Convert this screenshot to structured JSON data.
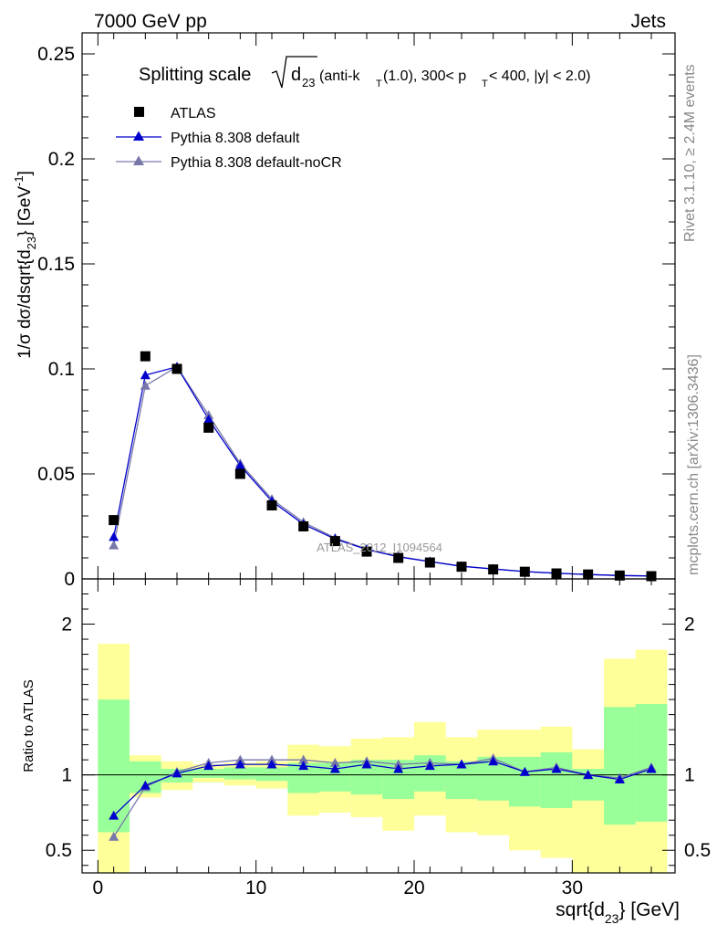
{
  "header": {
    "left": "7000 GeV pp",
    "right": "Jets"
  },
  "side_labels": {
    "rivet": "Rivet 3.1.10, ≥ 2.4M events",
    "mcplots": "mcplots.cern.ch [arXiv:1306.3436]"
  },
  "watermark": "ATLAS_2012_I1094564",
  "chart_data": [
    {
      "type": "scatter",
      "title": {
        "main": "Splitting scale",
        "d_sub": "23",
        "mid": " (anti-k",
        "mid_sub": "T",
        "mid2": "(1.0), 300< p",
        "pt_sub": "T",
        "tail": " < 400, |y| < 2.0)"
      },
      "ylabel": {
        "a": "1/σ dσ/dsqrt{d",
        "sub": "23",
        "b": "} [GeV",
        "sup": "-1",
        "c": "]"
      },
      "xlim": [
        -1,
        36.5
      ],
      "ylim": [
        0,
        0.26
      ],
      "yticks": [
        0,
        0.05,
        0.1,
        0.15,
        0.2,
        0.25
      ],
      "ytick_labels": [
        "0",
        "0.05",
        "0.1",
        "0.15",
        "0.2",
        "0.25"
      ],
      "x": [
        1,
        3,
        5,
        7,
        9,
        11,
        13,
        15,
        17,
        19,
        21,
        23,
        25,
        27,
        29,
        31,
        33,
        35
      ],
      "series": [
        {
          "name": "ATLAS",
          "color": "#000000",
          "marker": "square",
          "values": [
            0.028,
            0.106,
            0.1,
            0.072,
            0.05,
            0.035,
            0.025,
            0.018,
            0.013,
            0.01,
            0.0078,
            0.0058,
            0.0045,
            0.0034,
            0.0026,
            0.0021,
            0.0016,
            0.0013
          ]
        },
        {
          "name": "Pythia 8.308 default",
          "color": "#0000cc",
          "marker": "triangle",
          "values": [
            0.02,
            0.097,
            0.101,
            0.076,
            0.054,
            0.037,
            0.026,
            0.019,
            0.014,
            0.0105,
            0.0082,
            0.006,
            0.0047,
            0.0035,
            0.0027,
            0.0021,
            0.0016,
            0.0014
          ]
        },
        {
          "name": "Pythia 8.308 default-noCR",
          "color": "#7777aa",
          "marker": "triangle",
          "values": [
            0.016,
            0.092,
            0.101,
            0.078,
            0.055,
            0.038,
            0.027,
            0.0195,
            0.0142,
            0.0107,
            0.0083,
            0.0061,
            0.0048,
            0.0035,
            0.0027,
            0.0021,
            0.0016,
            0.0014
          ]
        }
      ]
    },
    {
      "type": "line",
      "ylabel": "Ratio to ATLAS",
      "xlabel": {
        "a": "sqrt{d",
        "sub": "23",
        "b": "} [GeV]"
      },
      "xlim": [
        -1,
        36.5
      ],
      "ylim": [
        0.35,
        2.3
      ],
      "xticks": [
        0,
        10,
        20,
        30
      ],
      "xtick_labels": [
        "0",
        "10",
        "20",
        "30"
      ],
      "yticks": [
        0.5,
        1,
        2
      ],
      "ytick_labels": [
        "0.5",
        "1",
        "2"
      ],
      "bins": [
        [
          0,
          2
        ],
        [
          2,
          4
        ],
        [
          4,
          6
        ],
        [
          6,
          8
        ],
        [
          8,
          10
        ],
        [
          10,
          12
        ],
        [
          12,
          14
        ],
        [
          14,
          16
        ],
        [
          16,
          18
        ],
        [
          18,
          20
        ],
        [
          20,
          22
        ],
        [
          22,
          24
        ],
        [
          24,
          26
        ],
        [
          26,
          28
        ],
        [
          28,
          30
        ],
        [
          30,
          32
        ],
        [
          32,
          34
        ],
        [
          34,
          36
        ]
      ],
      "band_yellow": [
        [
          0.35,
          1.87
        ],
        [
          0.85,
          1.13
        ],
        [
          0.9,
          1.09
        ],
        [
          0.95,
          1.07
        ],
        [
          0.93,
          1.08
        ],
        [
          0.91,
          1.09
        ],
        [
          0.73,
          1.2
        ],
        [
          0.75,
          1.19
        ],
        [
          0.72,
          1.24
        ],
        [
          0.63,
          1.25
        ],
        [
          0.73,
          1.35
        ],
        [
          0.62,
          1.25
        ],
        [
          0.6,
          1.3
        ],
        [
          0.5,
          1.3
        ],
        [
          0.45,
          1.32
        ],
        [
          0.35,
          1.17
        ],
        [
          0.35,
          1.77
        ],
        [
          0.35,
          1.83
        ]
      ],
      "band_green": [
        [
          0.62,
          1.5
        ],
        [
          0.88,
          1.09
        ],
        [
          0.95,
          1.04
        ],
        [
          0.98,
          1.04
        ],
        [
          0.97,
          1.05
        ],
        [
          0.96,
          1.05
        ],
        [
          0.88,
          1.08
        ],
        [
          0.89,
          1.08
        ],
        [
          0.87,
          1.1
        ],
        [
          0.84,
          1.1
        ],
        [
          0.89,
          1.13
        ],
        [
          0.84,
          1.09
        ],
        [
          0.83,
          1.12
        ],
        [
          0.79,
          1.12
        ],
        [
          0.78,
          1.15
        ],
        [
          0.83,
          1.04
        ],
        [
          0.67,
          1.45
        ],
        [
          0.69,
          1.47
        ]
      ],
      "x": [
        1,
        3,
        5,
        7,
        9,
        11,
        13,
        15,
        17,
        19,
        21,
        23,
        25,
        27,
        29,
        31,
        33,
        35
      ],
      "series": [
        {
          "name": "Pythia 8.308 default",
          "color": "#0000cc",
          "values": [
            0.73,
            0.93,
            1.01,
            1.06,
            1.07,
            1.07,
            1.06,
            1.04,
            1.07,
            1.04,
            1.06,
            1.07,
            1.09,
            1.02,
            1.04,
            1.0,
            0.97,
            1.04
          ]
        },
        {
          "name": "Pythia 8.308 default-noCR",
          "color": "#7777aa",
          "values": [
            0.59,
            0.92,
            1.02,
            1.08,
            1.1,
            1.1,
            1.1,
            1.08,
            1.09,
            1.07,
            1.08,
            1.07,
            1.11,
            1.02,
            1.05,
            1.0,
            0.98,
            1.05
          ]
        }
      ]
    }
  ]
}
